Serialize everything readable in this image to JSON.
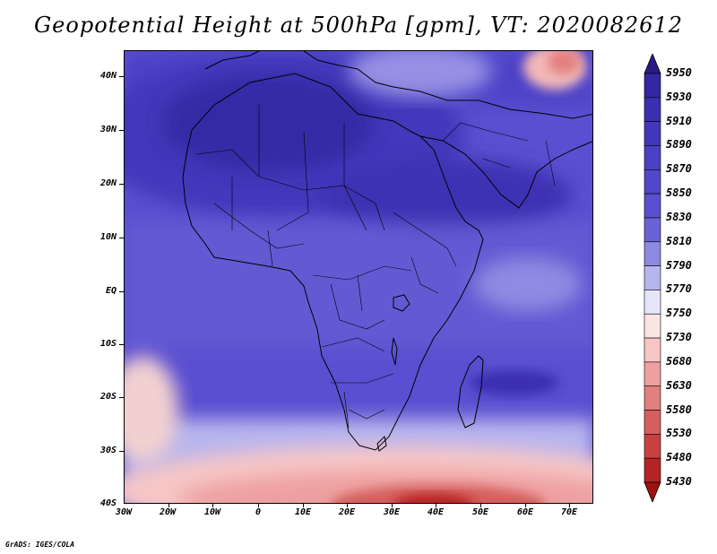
{
  "title": "Geopotential Height at 500hPa [gpm], VT: 2020082612",
  "credit": "GrADS: IGES/COLA",
  "map": {
    "lat_labels": [
      "40N",
      "30N",
      "20N",
      "10N",
      "EQ",
      "10S",
      "20S",
      "30S",
      "40S"
    ],
    "lon_labels": [
      "30W",
      "20W",
      "10W",
      "0",
      "10E",
      "20E",
      "30E",
      "40E",
      "50E",
      "60E",
      "70E"
    ]
  },
  "colorbar": {
    "levels": [
      "5950",
      "5930",
      "5910",
      "5890",
      "5870",
      "5850",
      "5830",
      "5810",
      "5790",
      "5770",
      "5750",
      "5730",
      "5680",
      "5630",
      "5580",
      "5530",
      "5480",
      "5430"
    ],
    "colors": [
      "#2a1a86",
      "#3427a1",
      "#3a2fb0",
      "#4436bb",
      "#4b40c6",
      "#5247cb",
      "#5a4fd0",
      "#6a63d6",
      "#8e89e2",
      "#b7b5ee",
      "#e6e6f8",
      "#fbe4e4",
      "#f6c6c6",
      "#eea0a0",
      "#e27f7f",
      "#d55f5f",
      "#c84141",
      "#b52424",
      "#9c1010"
    ]
  }
}
